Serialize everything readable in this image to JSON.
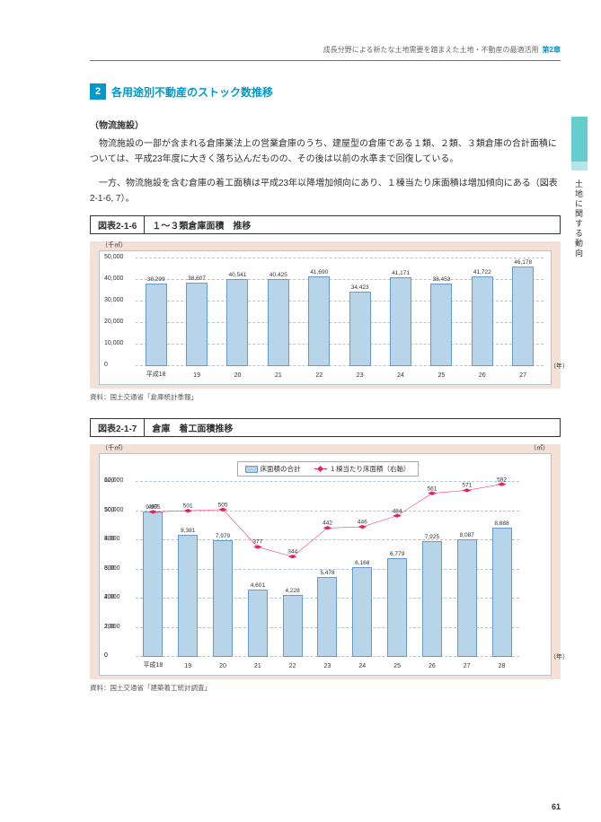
{
  "header": {
    "text": "成長分野による新たな土地需要を踏まえた土地・不動産の最適活用",
    "chapter": "第2章"
  },
  "sideText": "土地に関する動向",
  "section": {
    "num": "2",
    "title": "各用途別不動産のストック数推移"
  },
  "subhead": "（物流施設）",
  "para1": "物流施設の一部が含まれる倉庫業法上の営業倉庫のうち、建屋型の倉庫である１類、２類、３類倉庫の合計面積については、平成23年度に大きく落ち込んだものの、その後は以前の水準まで回復している。",
  "para2": "一方、物流施設を含む倉庫の着工面積は平成23年以降増加傾向にあり、１棟当たり床面積は増加傾向にある（図表2-1-6, 7）。",
  "fig1": {
    "label": "図表2-1-6",
    "title": "１～３類倉庫面積　推移",
    "yunit": "（千㎡）",
    "xunit": "（年）",
    "ymax": 50000,
    "yticks": [
      0,
      10000,
      20000,
      30000,
      40000,
      50000
    ],
    "categories": [
      "平成18",
      "19",
      "20",
      "21",
      "22",
      "23",
      "24",
      "25",
      "26",
      "27"
    ],
    "values": [
      38299,
      38607,
      40541,
      40425,
      41690,
      34423,
      41171,
      38453,
      41722,
      46178
    ],
    "bar_color": "#b8d4e8",
    "bar_border": "#6699cc",
    "bg": "#f5e0d5"
  },
  "source1": "資料：国土交通省「倉庫統計季報」",
  "fig2": {
    "label": "図表2-1-7",
    "title": "倉庫　着工面積推移",
    "yunit": "（千㎡）",
    "y2unit": "（㎡）",
    "xunit": "（年）",
    "legend1": "床面積の合計",
    "legend2": "１棟当たり床面積（右軸）",
    "ymax": 12000,
    "yticks": [
      0,
      2000,
      4000,
      6000,
      8000,
      10000,
      12000
    ],
    "y2max": 600,
    "y2ticks": [
      0,
      100,
      200,
      300,
      400,
      500,
      600
    ],
    "categories": [
      "平成18",
      "19",
      "20",
      "21",
      "22",
      "23",
      "24",
      "25",
      "26",
      "27",
      "28"
    ],
    "bars": [
      9955,
      8381,
      7979,
      4601,
      4228,
      5478,
      6168,
      6779,
      7925,
      8087,
      8888
    ],
    "line": [
      497,
      501,
      505,
      377,
      344,
      442,
      446,
      484,
      561,
      571,
      592
    ],
    "bar_color": "#b8d4e8",
    "line_color": "#e91e63"
  },
  "source2": "資料：国土交通省「建築着工統計調査」",
  "pageNum": "61"
}
